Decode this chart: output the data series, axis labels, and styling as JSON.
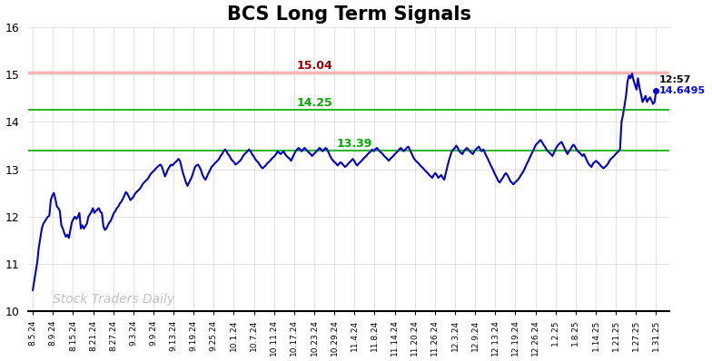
{
  "title": "BCS Long Term Signals",
  "title_fontsize": 15,
  "title_fontweight": "bold",
  "background_color": "#ffffff",
  "line_color": "#0000cc",
  "line_width": 1.5,
  "ylim": [
    10,
    16
  ],
  "yticks": [
    10,
    11,
    12,
    13,
    14,
    15,
    16
  ],
  "resistance_line": 15.04,
  "resistance_band_color": "#ffcccc",
  "resistance_line_color": "#ff9999",
  "resistance_label": "15.04",
  "resistance_label_color": "#990000",
  "support_upper": 14.25,
  "support_upper_color": "#00aa00",
  "support_upper_label": "14.25",
  "support_lower": 13.39,
  "support_lower_color": "#00aa00",
  "support_lower_label": "13.39",
  "last_price": 14.6495,
  "last_time": "12:57",
  "last_price_color": "#0000ff",
  "watermark": "Stock Traders Daily",
  "watermark_color": "#bbbbbb",
  "watermark_fontsize": 10,
  "x_labels": [
    "8.5.24",
    "8.9.24",
    "8.15.24",
    "8.21.24",
    "8.27.24",
    "9.3.24",
    "9.9.24",
    "9.13.24",
    "9.19.24",
    "9.25.24",
    "10.1.24",
    "10.7.24",
    "10.11.24",
    "10.17.24",
    "10.23.24",
    "10.29.24",
    "11.4.24",
    "11.8.24",
    "11.14.24",
    "11.20.24",
    "11.26.24",
    "12.3.24",
    "12.9.24",
    "12.13.24",
    "12.19.24",
    "12.26.24",
    "1.2.25",
    "1.8.25",
    "1.14.25",
    "1.21.25",
    "1.27.25",
    "1.31.25"
  ],
  "prices": [
    10.45,
    10.65,
    10.85,
    11.05,
    11.35,
    11.55,
    11.75,
    11.85,
    11.9,
    11.95,
    12.0,
    12.02,
    12.35,
    12.45,
    12.5,
    12.38,
    12.22,
    12.18,
    12.12,
    11.82,
    11.75,
    11.65,
    11.58,
    11.62,
    11.55,
    11.72,
    11.88,
    11.95,
    12.0,
    11.95,
    12.0,
    12.08,
    11.75,
    11.82,
    11.75,
    11.8,
    11.85,
    12.0,
    12.05,
    12.1,
    12.18,
    12.08,
    12.12,
    12.15,
    12.18,
    12.1,
    12.08,
    11.8,
    11.72,
    11.75,
    11.82,
    11.88,
    11.92,
    12.0,
    12.08,
    12.12,
    12.18,
    12.22,
    12.28,
    12.32,
    12.38,
    12.45,
    12.52,
    12.48,
    12.42,
    12.35,
    12.38,
    12.42,
    12.48,
    12.52,
    12.55,
    12.58,
    12.62,
    12.68,
    12.72,
    12.75,
    12.78,
    12.82,
    12.88,
    12.92,
    12.95,
    12.98,
    13.02,
    13.05,
    13.08,
    13.1,
    13.05,
    12.95,
    12.85,
    12.92,
    13.0,
    13.05,
    13.1,
    13.08,
    13.12,
    13.15,
    13.18,
    13.22,
    13.18,
    13.05,
    12.92,
    12.82,
    12.72,
    12.65,
    12.72,
    12.78,
    12.85,
    12.95,
    13.05,
    13.08,
    13.1,
    13.05,
    12.98,
    12.88,
    12.82,
    12.78,
    12.85,
    12.92,
    12.98,
    13.05,
    13.08,
    13.12,
    13.15,
    13.18,
    13.22,
    13.28,
    13.32,
    13.38,
    13.42,
    13.38,
    13.32,
    13.28,
    13.22,
    13.18,
    13.15,
    13.1,
    13.12,
    13.15,
    13.18,
    13.22,
    13.28,
    13.32,
    13.35,
    13.38,
    13.42,
    13.38,
    13.32,
    13.28,
    13.22,
    13.18,
    13.15,
    13.1,
    13.05,
    13.02,
    13.05,
    13.08,
    13.12,
    13.15,
    13.18,
    13.22,
    13.25,
    13.28,
    13.32,
    13.38,
    13.35,
    13.32,
    13.35,
    13.38,
    13.32,
    13.28,
    13.25,
    13.22,
    13.18,
    13.25,
    13.32,
    13.38,
    13.42,
    13.45,
    13.42,
    13.38,
    13.42,
    13.45,
    13.42,
    13.38,
    13.35,
    13.32,
    13.28,
    13.32,
    13.35,
    13.38,
    13.42,
    13.45,
    13.42,
    13.38,
    13.42,
    13.45,
    13.42,
    13.35,
    13.28,
    13.22,
    13.18,
    13.15,
    13.12,
    13.08,
    13.12,
    13.15,
    13.12,
    13.08,
    13.05,
    13.08,
    13.12,
    13.15,
    13.18,
    13.22,
    13.18,
    13.12,
    13.08,
    13.12,
    13.15,
    13.18,
    13.22,
    13.25,
    13.28,
    13.32,
    13.35,
    13.38,
    13.42,
    13.38,
    13.42,
    13.45,
    13.42,
    13.38,
    13.35,
    13.32,
    13.28,
    13.25,
    13.22,
    13.18,
    13.22,
    13.25,
    13.28,
    13.32,
    13.35,
    13.38,
    13.42,
    13.45,
    13.42,
    13.38,
    13.42,
    13.45,
    13.48,
    13.42,
    13.35,
    13.28,
    13.22,
    13.18,
    13.15,
    13.12,
    13.08,
    13.05,
    13.02,
    12.98,
    12.95,
    12.92,
    12.88,
    12.85,
    12.82,
    12.88,
    12.92,
    12.88,
    12.82,
    12.85,
    12.88,
    12.82,
    12.78,
    12.92,
    13.05,
    13.18,
    13.28,
    13.38,
    13.42,
    13.45,
    13.5,
    13.45,
    13.38,
    13.35,
    13.32,
    13.38,
    13.42,
    13.45,
    13.42,
    13.38,
    13.35,
    13.32,
    13.38,
    13.42,
    13.45,
    13.48,
    13.42,
    13.38,
    13.42,
    13.35,
    13.28,
    13.22,
    13.15,
    13.08,
    13.02,
    12.95,
    12.88,
    12.82,
    12.75,
    12.72,
    12.78,
    12.82,
    12.88,
    12.92,
    12.88,
    12.82,
    12.75,
    12.72,
    12.68,
    12.72,
    12.75,
    12.78,
    12.82,
    12.88,
    12.92,
    12.98,
    13.05,
    13.12,
    13.18,
    13.25,
    13.32,
    13.38,
    13.45,
    13.52,
    13.55,
    13.58,
    13.62,
    13.58,
    13.52,
    13.48,
    13.42,
    13.38,
    13.35,
    13.32,
    13.28,
    13.35,
    13.42,
    13.48,
    13.52,
    13.55,
    13.58,
    13.52,
    13.45,
    13.38,
    13.32,
    13.38,
    13.42,
    13.48,
    13.52,
    13.48,
    13.42,
    13.38,
    13.35,
    13.32,
    13.28,
    13.32,
    13.25,
    13.18,
    13.12,
    13.08,
    13.05,
    13.12,
    13.15,
    13.18,
    13.15,
    13.12,
    13.08,
    13.05,
    13.02,
    13.05,
    13.08,
    13.12,
    13.18,
    13.22,
    13.25,
    13.28,
    13.32,
    13.35,
    13.38,
    13.42,
    14.0,
    14.15,
    14.35,
    14.55,
    14.85,
    14.98,
    14.92,
    15.02,
    14.88,
    14.78,
    14.68,
    14.92,
    14.72,
    14.58,
    14.42,
    14.48,
    14.55,
    14.42,
    14.48,
    14.52,
    14.45,
    14.38,
    14.42,
    14.6495
  ]
}
